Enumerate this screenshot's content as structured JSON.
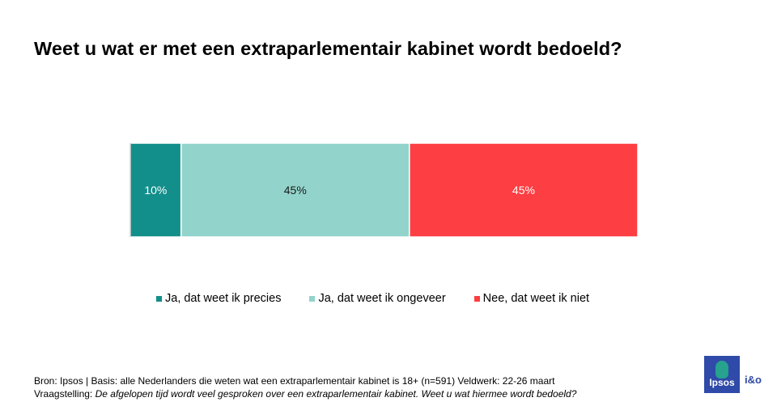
{
  "title": "Weet u wat er met een extraparlementair kabinet wordt bedoeld?",
  "chart_data": {
    "type": "bar",
    "orientation": "horizontal-stacked-100",
    "categories": [
      ""
    ],
    "series": [
      {
        "name": "Ja, dat weet ik precies",
        "values": [
          10
        ],
        "label": "10%",
        "color": "#138f8b",
        "label_color": "#ffffff"
      },
      {
        "name": "Ja, dat weet ik ongeveer",
        "values": [
          45
        ],
        "label": "45%",
        "color": "#92d4cb",
        "label_color": "#1a1a1a"
      },
      {
        "name": "Nee, dat weet ik niet",
        "values": [
          45
        ],
        "label": "45%",
        "color": "#fd3e42",
        "label_color": "#ffffff"
      }
    ],
    "legend_position": "bottom",
    "grid": false
  },
  "footer": {
    "line1": "Bron: Ipsos | Basis: alle Nederlanders  die weten wat een extraparlementair  kabinet is 18+ (n=591) Veldwerk: 22-26  maart",
    "line2_prefix": "Vraagstelling: ",
    "line2_question": "De afgelopen tijd wordt  veel gesproken over een extraparlementair  kabinet. Weet u wat  hiermee wordt  bedoeld?"
  },
  "logo": {
    "brand": "Ipsos",
    "partner": "i&o",
    "colors": {
      "blue": "#2f4aa8",
      "green": "#26a28f"
    }
  }
}
